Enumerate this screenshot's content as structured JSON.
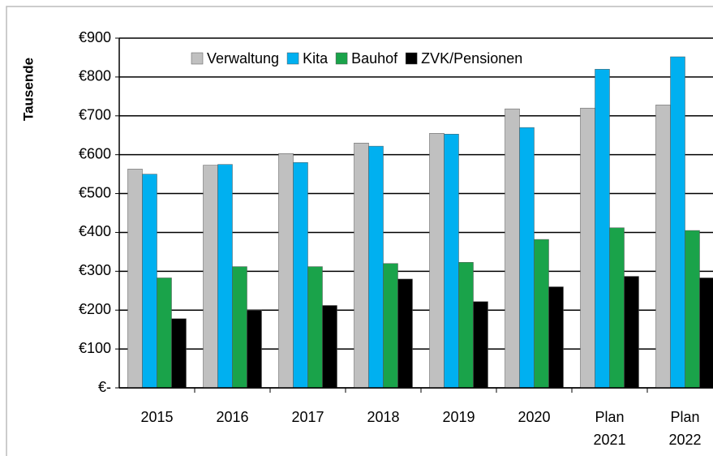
{
  "chart_data": {
    "type": "bar",
    "y_label": "Tausende",
    "categories": [
      "2015",
      "2016",
      "2017",
      "2018",
      "2019",
      "2020",
      "Plan 2021",
      "Plan 2022"
    ],
    "series": [
      {
        "name": "Verwaltung",
        "color": "#c0c0c0",
        "values": [
          563,
          573,
          603,
          630,
          655,
          718,
          720,
          728
        ]
      },
      {
        "name": "Kita",
        "color": "#00b0f0",
        "values": [
          550,
          575,
          580,
          622,
          653,
          670,
          820,
          852
        ]
      },
      {
        "name": "Bauhof",
        "color": "#1aa34a",
        "values": [
          283,
          312,
          312,
          320,
          323,
          382,
          412,
          405
        ]
      },
      {
        "name": "ZVK/Pensionen",
        "color": "#000000",
        "values": [
          178,
          200,
          212,
          280,
          222,
          260,
          287,
          283
        ]
      }
    ],
    "ylim": [
      0,
      900
    ],
    "yticks": [
      {
        "value": 0,
        "label": "€-"
      },
      {
        "value": 100,
        "label": "€100"
      },
      {
        "value": 200,
        "label": "€200"
      },
      {
        "value": 300,
        "label": "€300"
      },
      {
        "value": 400,
        "label": "€400"
      },
      {
        "value": 500,
        "label": "€500"
      },
      {
        "value": 600,
        "label": "€600"
      },
      {
        "value": 700,
        "label": "€700"
      },
      {
        "value": 800,
        "label": "€800"
      },
      {
        "value": 900,
        "label": "€900"
      }
    ],
    "grid": true,
    "legend": "top"
  }
}
